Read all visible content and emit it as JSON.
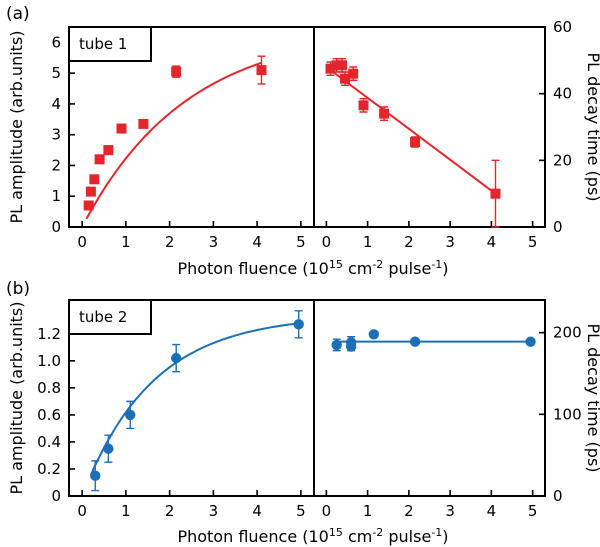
{
  "chart_data": [
    {
      "type": "scatter",
      "panel_label": "(a)",
      "sample_label": "tube 1",
      "color": "#e3262b",
      "marker": "square",
      "xlabel_parts": [
        "Photon fluence (10",
        "15",
        " cm",
        "-2",
        " pulse",
        "-1",
        ")"
      ],
      "left": {
        "ylabel": "PL amplitude (arb.units)",
        "xlim": [
          -0.3,
          5.3
        ],
        "ylim": [
          0,
          6.5
        ],
        "xticks": [
          "0",
          "1",
          "2",
          "3",
          "4",
          "5"
        ],
        "yticks": [
          "0",
          "1",
          "2",
          "3",
          "4",
          "5",
          "6"
        ],
        "points": [
          {
            "x": 0.15,
            "y": 0.7,
            "err": 0.08
          },
          {
            "x": 0.2,
            "y": 1.15,
            "err": 0.08
          },
          {
            "x": 0.28,
            "y": 1.55,
            "err": 0.08
          },
          {
            "x": 0.4,
            "y": 2.2,
            "err": 0.08
          },
          {
            "x": 0.6,
            "y": 2.5,
            "err": 0.08
          },
          {
            "x": 0.9,
            "y": 3.2,
            "err": 0.08
          },
          {
            "x": 1.4,
            "y": 3.35,
            "err": 0.08
          },
          {
            "x": 2.15,
            "y": 5.05,
            "err": 0.18
          },
          {
            "x": 4.1,
            "y": 5.1,
            "err": 0.45
          }
        ],
        "fit": {
          "kind": "saturation",
          "amax": 6.5,
          "k": 0.42,
          "x_from": 0.1,
          "x_to": 4.1
        }
      },
      "right": {
        "ylabel": "PL decay time (ps)",
        "xlim": [
          -0.3,
          5.3
        ],
        "ylim": [
          0,
          60
        ],
        "xticks": [
          "0",
          "1",
          "2",
          "3",
          "4",
          "5"
        ],
        "yticks": [
          "0",
          "20",
          "40",
          "60"
        ],
        "ytick_values": [
          0,
          20,
          40,
          60
        ],
        "points": [
          {
            "x": 0.1,
            "y": 47.5,
            "err": 2.0
          },
          {
            "x": 0.25,
            "y": 48.5,
            "err": 2.0
          },
          {
            "x": 0.38,
            "y": 48.5,
            "err": 2.0
          },
          {
            "x": 0.45,
            "y": 44.5,
            "err": 2.0
          },
          {
            "x": 0.65,
            "y": 46.0,
            "err": 2.0
          },
          {
            "x": 0.9,
            "y": 36.5,
            "err": 2.0
          },
          {
            "x": 1.4,
            "y": 34.0,
            "err": 2.0
          },
          {
            "x": 2.15,
            "y": 25.5,
            "err": 1.5
          },
          {
            "x": 4.1,
            "y": 10.0,
            "err": 10.0
          }
        ],
        "fit": {
          "kind": "linear",
          "x_from": 0.0,
          "x_to": 4.1,
          "y_from": 48.0,
          "y_to": 10.0
        }
      }
    },
    {
      "type": "scatter",
      "panel_label": "(b)",
      "sample_label": "tube 2",
      "color": "#1d6fb5",
      "marker": "circle",
      "xlabel_parts": [
        "Photon fluence (10",
        "15",
        " cm",
        "-2",
        " pulse",
        "-1",
        ")"
      ],
      "left": {
        "ylabel": "PL amplitude (arb.units)",
        "xlim": [
          -0.3,
          5.3
        ],
        "ylim": [
          0,
          1.45
        ],
        "xticks": [
          "0",
          "1",
          "2",
          "3",
          "4",
          "5"
        ],
        "yticks": [
          "0",
          "0.2",
          "0.4",
          "0.6",
          "0.8",
          "1.0",
          "1.2"
        ],
        "ytick_values": [
          0,
          0.2,
          0.4,
          0.6,
          0.8,
          1.0,
          1.2
        ],
        "points": [
          {
            "x": 0.3,
            "y": 0.15,
            "err": 0.11
          },
          {
            "x": 0.6,
            "y": 0.35,
            "err": 0.1
          },
          {
            "x": 1.1,
            "y": 0.6,
            "err": 0.1
          },
          {
            "x": 2.15,
            "y": 1.02,
            "err": 0.1
          },
          {
            "x": 4.95,
            "y": 1.27,
            "err": 0.1
          }
        ],
        "fit": {
          "kind": "saturation",
          "amax": 1.34,
          "k": 0.62,
          "x_from": 0.2,
          "x_to": 4.95
        }
      },
      "right": {
        "ylabel": "PL decay time (ps)",
        "xlim": [
          -0.3,
          5.3
        ],
        "ylim": [
          0,
          240
        ],
        "xticks": [
          "0",
          "1",
          "2",
          "3",
          "4",
          "5"
        ],
        "yticks": [
          "0",
          "100",
          "200"
        ],
        "ytick_values": [
          0,
          100,
          200
        ],
        "points": [
          {
            "x": 0.25,
            "y": 185,
            "err": 7
          },
          {
            "x": 0.6,
            "y": 188,
            "err": 7
          },
          {
            "x": 0.6,
            "y": 183,
            "err": 5
          },
          {
            "x": 1.15,
            "y": 198,
            "err": 0
          },
          {
            "x": 2.15,
            "y": 189,
            "err": 0
          },
          {
            "x": 4.95,
            "y": 189,
            "err": 0
          }
        ],
        "fit": {
          "kind": "linear",
          "x_from": 0.2,
          "x_to": 5.0,
          "y_from": 189,
          "y_to": 189
        }
      }
    }
  ]
}
